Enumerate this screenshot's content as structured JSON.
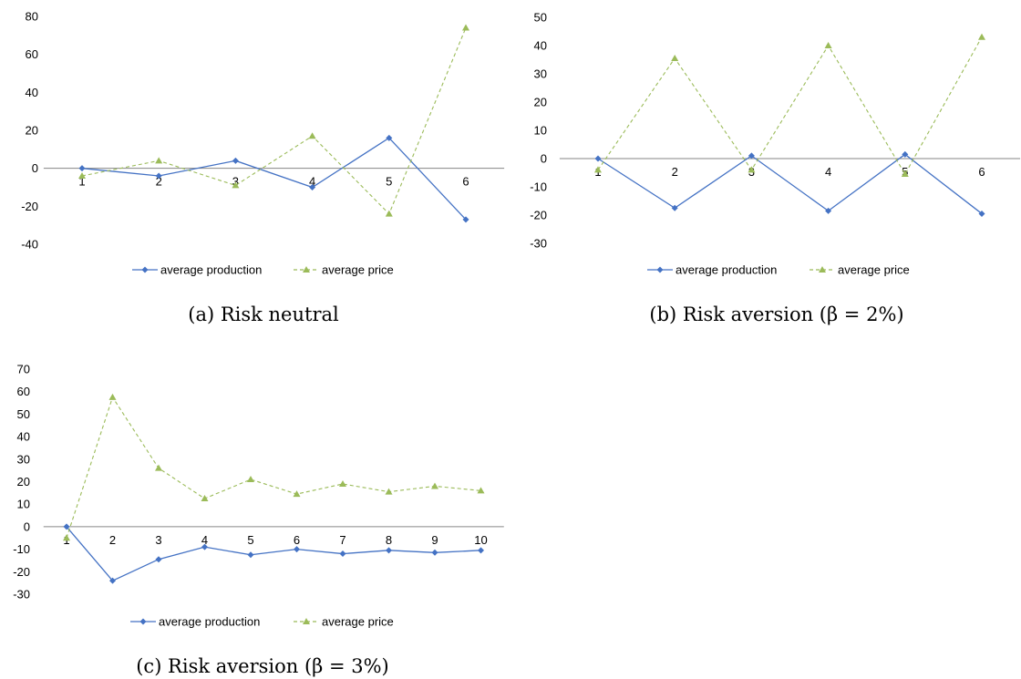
{
  "chart_data": [
    {
      "type": "line",
      "caption": "(a) Risk neutral",
      "categories": [
        "1",
        "2",
        "3",
        "4",
        "5",
        "6"
      ],
      "ylim": [
        -40,
        80
      ],
      "yticks": [
        "80",
        "60",
        "40",
        "20",
        "0",
        "-20",
        "-40"
      ],
      "series": [
        {
          "name": "average production",
          "values": [
            0,
            -4,
            4,
            -10,
            16,
            -27
          ],
          "color": "#4472c4",
          "marker": "diamond",
          "dash": "solid"
        },
        {
          "name": "average price",
          "values": [
            -4,
            4,
            -9,
            17,
            -24,
            74
          ],
          "color": "#9bbb59",
          "marker": "triangle",
          "dash": "dashed"
        }
      ],
      "legend": "bottom"
    },
    {
      "type": "line",
      "caption": "(b) Risk aversion (β = 2%)",
      "categories": [
        "1",
        "2",
        "3",
        "4",
        "5",
        "6"
      ],
      "ylim": [
        -30,
        50
      ],
      "yticks": [
        "50",
        "40",
        "30",
        "20",
        "10",
        "0",
        "-10",
        "-20",
        "-30"
      ],
      "series": [
        {
          "name": "average production",
          "values": [
            0,
            -17.5,
            1,
            -18.5,
            1.5,
            -19.5
          ],
          "color": "#4472c4",
          "marker": "diamond",
          "dash": "solid"
        },
        {
          "name": "average price",
          "values": [
            -4,
            35.5,
            -4,
            40,
            -5.5,
            43
          ],
          "color": "#9bbb59",
          "marker": "triangle",
          "dash": "dashed"
        }
      ],
      "legend": "bottom"
    },
    {
      "type": "line",
      "caption": "(c) Risk aversion (β = 3%)",
      "categories": [
        "1",
        "2",
        "3",
        "4",
        "5",
        "6",
        "7",
        "8",
        "9",
        "10"
      ],
      "ylim": [
        -30,
        70
      ],
      "yticks": [
        "70",
        "60",
        "50",
        "40",
        "30",
        "20",
        "10",
        "0",
        "-10",
        "-20",
        "-30"
      ],
      "series": [
        {
          "name": "average production",
          "values": [
            0,
            -24,
            -14.5,
            -9,
            -12.5,
            -10,
            -12,
            -10.5,
            -11.5,
            -10.5
          ],
          "color": "#4472c4",
          "marker": "diamond",
          "dash": "solid"
        },
        {
          "name": "average price",
          "values": [
            -5,
            57.5,
            26,
            12.5,
            21,
            14.5,
            19,
            15.5,
            18,
            16
          ],
          "color": "#9bbb59",
          "marker": "triangle",
          "dash": "dashed"
        }
      ],
      "legend": "bottom"
    }
  ]
}
